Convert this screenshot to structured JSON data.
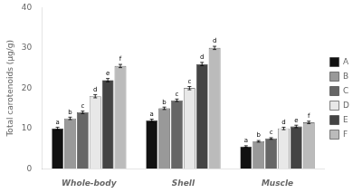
{
  "chart_data": {
    "type": "bar",
    "categories": [
      "Whole-body",
      "Shell",
      "Muscle"
    ],
    "series": [
      {
        "name": "A",
        "color": "#111111",
        "values": [
          10.0,
          12.0,
          5.5
        ],
        "errors": [
          0.3,
          0.3,
          0.2
        ],
        "annotations": [
          "a",
          "a",
          "a"
        ]
      },
      {
        "name": "B",
        "color": "#999999",
        "values": [
          12.5,
          15.0,
          6.8
        ],
        "errors": [
          0.3,
          0.3,
          0.2
        ],
        "annotations": [
          "b",
          "b",
          "b"
        ]
      },
      {
        "name": "C",
        "color": "#666666",
        "values": [
          14.0,
          17.0,
          7.5
        ],
        "errors": [
          0.3,
          0.3,
          0.2
        ],
        "annotations": [
          "c",
          "c",
          "c"
        ]
      },
      {
        "name": "D",
        "color": "#e8e8e8",
        "values": [
          18.0,
          20.0,
          10.0
        ],
        "errors": [
          0.4,
          0.4,
          0.3
        ],
        "annotations": [
          "d",
          "c",
          "d"
        ]
      },
      {
        "name": "E",
        "color": "#444444",
        "values": [
          22.0,
          26.0,
          10.5
        ],
        "errors": [
          0.4,
          0.4,
          0.3
        ],
        "annotations": [
          "e",
          "d",
          "e"
        ]
      },
      {
        "name": "F",
        "color": "#bbbbbb",
        "values": [
          25.5,
          30.0,
          11.5
        ],
        "errors": [
          0.4,
          0.4,
          0.3
        ],
        "annotations": [
          "f",
          "d",
          "f"
        ]
      }
    ],
    "ylabel": "Total carotenoids (μg/g)",
    "ylim": [
      0,
      40
    ],
    "yticks": [
      0,
      10,
      20,
      30,
      40
    ],
    "grid": false,
    "legend": "right"
  }
}
